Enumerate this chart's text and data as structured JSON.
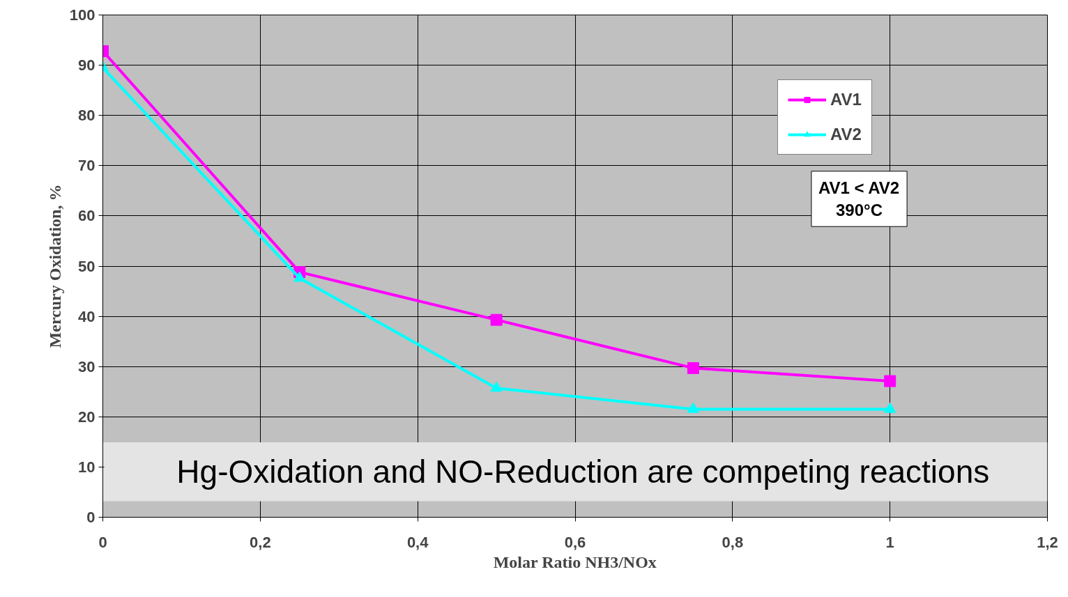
{
  "chart_data": {
    "type": "line",
    "xlabel": "Molar Ratio NH3/NOx",
    "ylabel": "Mercury Oxidation, %",
    "x": [
      0,
      0.25,
      0.5,
      0.75,
      1
    ],
    "series": [
      {
        "name": "AV1",
        "color": "#ff00ff",
        "marker": "square",
        "values": [
          92.8,
          48.8,
          39.3,
          29.7,
          27.1
        ]
      },
      {
        "name": "AV2",
        "color": "#00ffff",
        "marker": "triangle",
        "values": [
          89.5,
          47.6,
          25.7,
          21.5,
          21.5
        ]
      }
    ],
    "xlim": [
      0,
      1.2
    ],
    "ylim": [
      0,
      100
    ],
    "xticks": [
      0,
      {
        "value": 0.2,
        "label": "0,2"
      },
      {
        "value": 0.4,
        "label": "0,4"
      },
      {
        "value": 0.6,
        "label": "0,6"
      },
      {
        "value": 0.8,
        "label": "0,8"
      },
      1,
      {
        "value": 1.2,
        "label": "1,2"
      }
    ],
    "yticks": [
      0,
      10,
      20,
      30,
      40,
      50,
      60,
      70,
      80,
      90,
      100
    ],
    "bands": [
      {
        "axis": "y",
        "from": 3.2,
        "to": 14.9,
        "label": "Hg-Oxidation and NO-Reduction are competing reactions",
        "color": "#e4e4e4"
      }
    ],
    "annotations": [
      "AV1 < AV2\n390°C"
    ],
    "grid": true,
    "legend": "top right"
  }
}
